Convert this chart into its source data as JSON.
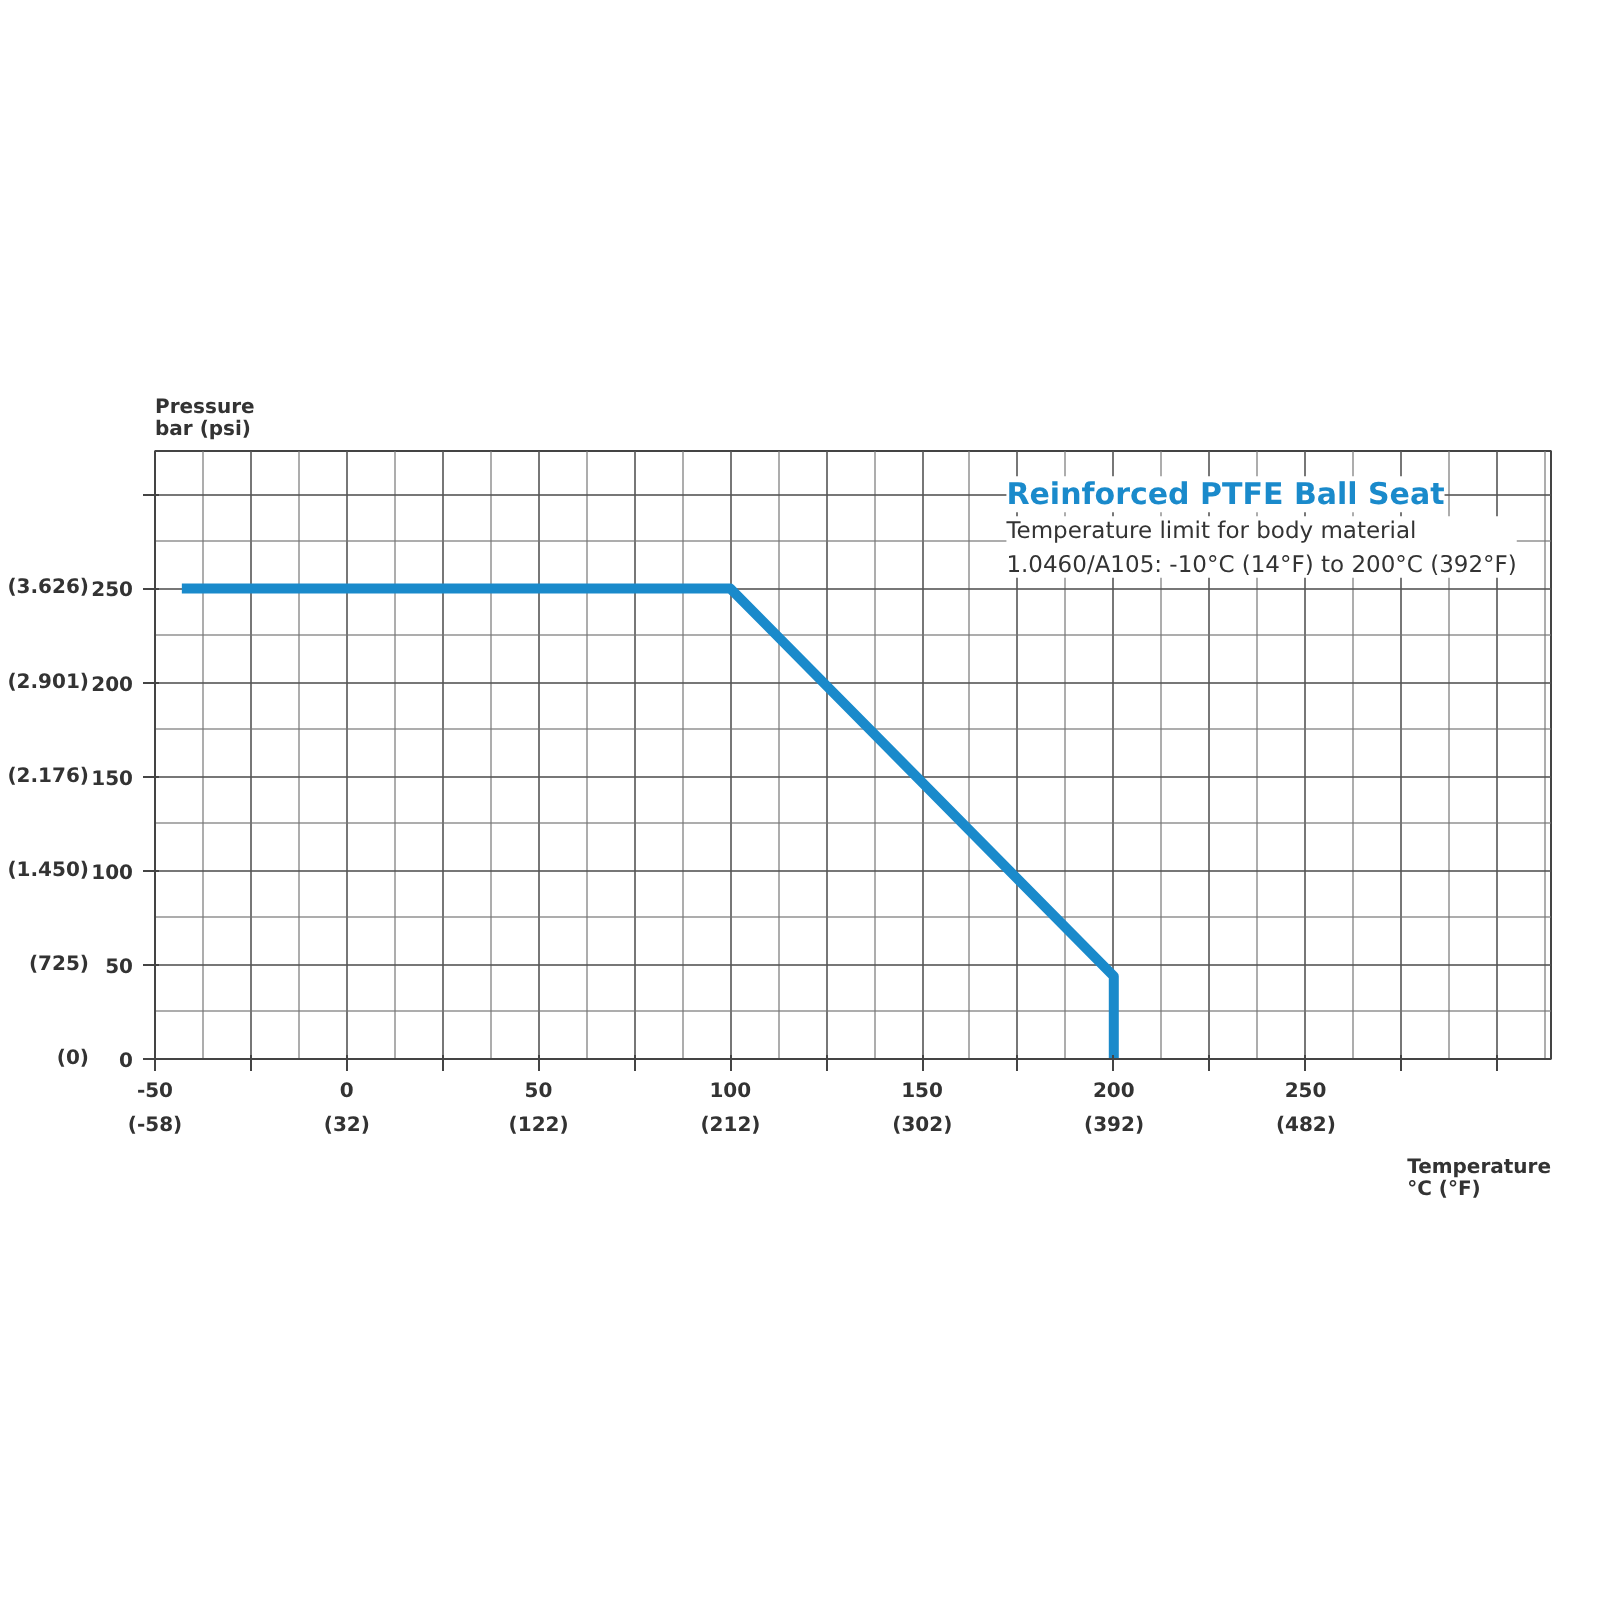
{
  "chart_data": {
    "type": "line",
    "title": "Reinforced PTFE Ball Seat",
    "subtitle": "Temperature limit for body material\n1.0460/A105: -10°C (14°F) to 200°C (392°F)",
    "xlabel": "Temperature\n°C (°F)",
    "ylabel": "Pressure\nbar (psi)",
    "x": [
      -43,
      100,
      200,
      200
    ],
    "series": [
      {
        "color": "#1a8acb",
        "values": [
          250,
          250,
          44,
          0
        ]
      }
    ],
    "xlim": [
      -50,
      314
    ],
    "ylim": [
      0,
      323
    ],
    "xticks": [
      -50,
      {
        "value": -25,
        "label": null
      },
      0,
      {
        "value": 25,
        "label": null
      },
      50,
      {
        "value": 75,
        "label": null
      },
      100,
      {
        "value": 125,
        "label": null
      },
      150,
      {
        "value": 175,
        "label": null
      },
      200,
      {
        "value": 225,
        "label": null
      },
      250,
      {
        "value": 275,
        "label": null
      },
      {
        "value": 300,
        "label": null
      }
    ],
    "yticks": [
      0,
      50,
      100,
      150,
      200,
      250,
      {
        "value": 300,
        "label": null
      }
    ],
    "x2lim": [
      -58,
      597
    ],
    "x2ticks": [
      {
        "value": -58,
        "label": "(-58)"
      },
      {
        "value": 32,
        "label": "(32)"
      },
      {
        "value": 122,
        "label": "(122)"
      },
      {
        "value": 212,
        "label": "(212)"
      },
      {
        "value": 302,
        "label": "(302)"
      },
      {
        "value": 392,
        "label": "(392)"
      },
      {
        "value": 482,
        "label": "(482)"
      }
    ],
    "y2lim": [
      0,
      4685
    ],
    "y2ticks": [
      {
        "value": 0,
        "label": "(0)"
      },
      {
        "value": 725,
        "label": "(725)"
      },
      {
        "value": 1450,
        "label": "(1.450)"
      },
      {
        "value": 2176,
        "label": "(2.176)"
      },
      {
        "value": 2901,
        "label": "(2.901)"
      },
      {
        "value": 3626,
        "label": "(3.626)"
      }
    ],
    "grid": true,
    "marker": "none",
    "line_style": "solid"
  }
}
